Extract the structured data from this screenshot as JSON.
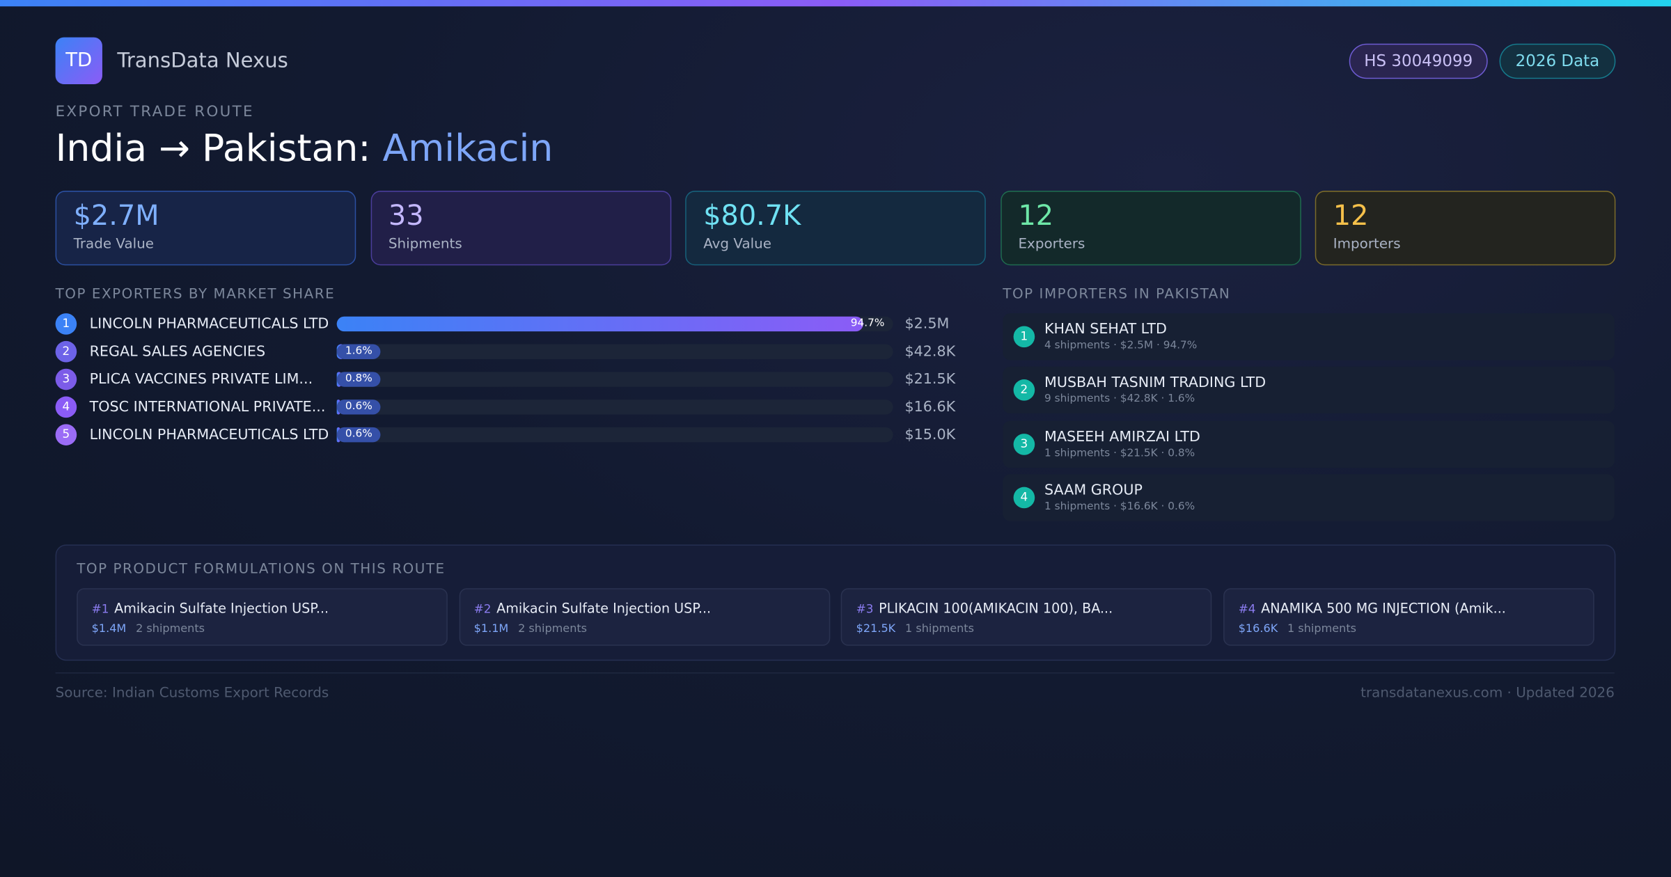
{
  "header": {
    "logo": "TD",
    "brand": "TransData Nexus",
    "badges": [
      "HS 30049099",
      "2026 Data"
    ]
  },
  "route": {
    "eyebrow": "EXPORT TRADE ROUTE",
    "title": "India → Pakistan:",
    "product": "Amikacin"
  },
  "stats": [
    {
      "value": "$2.7M",
      "label": "Trade Value"
    },
    {
      "value": "33",
      "label": "Shipments"
    },
    {
      "value": "$80.7K",
      "label": "Avg Value"
    },
    {
      "value": "12",
      "label": "Exporters"
    },
    {
      "value": "12",
      "label": "Importers"
    }
  ],
  "exporters": {
    "title": "TOP EXPORTERS BY MARKET SHARE",
    "rows": [
      {
        "rank": "1",
        "name": "LINCOLN PHARMACEUTICALS LTD",
        "share": 94.7,
        "share_label": "94.7%",
        "value": "$2.5M"
      },
      {
        "rank": "2",
        "name": "REGAL SALES AGENCIES",
        "share": 1.6,
        "share_label": "1.6%",
        "value": "$42.8K"
      },
      {
        "rank": "3",
        "name": "PLICA VACCINES PRIVATE LIM...",
        "share": 0.8,
        "share_label": "0.8%",
        "value": "$21.5K"
      },
      {
        "rank": "4",
        "name": "TOSC INTERNATIONAL PRIVATE...",
        "share": 0.6,
        "share_label": "0.6%",
        "value": "$16.6K"
      },
      {
        "rank": "5",
        "name": "LINCOLN PHARMACEUTICALS LTD",
        "share": 0.6,
        "share_label": "0.6%",
        "value": "$15.0K"
      }
    ]
  },
  "importers": {
    "title": "TOP IMPORTERS IN PAKISTAN",
    "rows": [
      {
        "rank": "1",
        "name": "KHAN SEHAT LTD",
        "detail": "4 shipments · $2.5M · 94.7%"
      },
      {
        "rank": "2",
        "name": "MUSBAH TASNIM TRADING LTD",
        "detail": "9 shipments · $42.8K · 1.6%"
      },
      {
        "rank": "3",
        "name": "MASEEH AMIRZAI LTD",
        "detail": "1 shipments · $21.5K · 0.8%"
      },
      {
        "rank": "4",
        "name": "SAAM GROUP",
        "detail": "1 shipments · $16.6K · 0.6%"
      }
    ]
  },
  "products": {
    "title": "TOP PRODUCT FORMULATIONS ON THIS ROUTE",
    "items": [
      {
        "rank": "#1",
        "name": "Amikacin Sulfate Injection USP...",
        "value": "$1.4M",
        "shipments": "2 shipments"
      },
      {
        "rank": "#2",
        "name": "Amikacin Sulfate Injection USP...",
        "value": "$1.1M",
        "shipments": "2 shipments"
      },
      {
        "rank": "#3",
        "name": "PLIKACIN 100(AMIKACIN 100), BA...",
        "value": "$21.5K",
        "shipments": "1 shipments"
      },
      {
        "rank": "#4",
        "name": "ANAMIKA 500 MG INJECTION (Amik...",
        "value": "$16.6K",
        "shipments": "1 shipments"
      }
    ]
  },
  "footer": {
    "source": "Source: Indian Customs Export Records",
    "site": "transdatanexus.com · Updated 2026"
  }
}
